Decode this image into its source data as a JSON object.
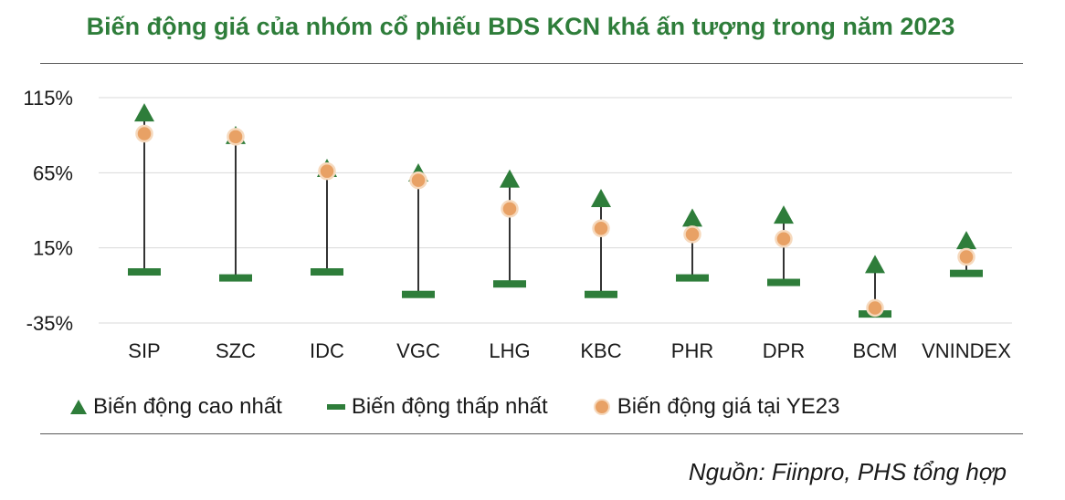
{
  "title": "Biến động giá của nhóm cổ phiếu BDS KCN khá ấn tượng trong năm 2023",
  "source": "Nguồn: Fiinpro, PHS tổng hợp",
  "colors": {
    "title": "#2e7d3a",
    "high": "#2e7d3a",
    "low": "#2e7d3a",
    "ye": "#e8a165",
    "ye_border": "#f6d9bd",
    "stem": "#333333",
    "grid": "#d9d9d9"
  },
  "legend": {
    "high": "Biến động cao nhất",
    "low": "Biến động thấp nhất",
    "ye": "Biến động giá tại YE23"
  },
  "chart_data": {
    "type": "scatter",
    "categories": [
      "SIP",
      "SZC",
      "IDC",
      "VGC",
      "LHG",
      "KBC",
      "PHR",
      "DPR",
      "BCM",
      "VNINDEX"
    ],
    "ylim": [
      -35,
      115
    ],
    "yticks": [
      -35,
      15,
      65,
      115
    ],
    "ytick_labels": [
      "-35%",
      "15%",
      "65%",
      "115%"
    ],
    "grid": true,
    "legend_position": "bottom",
    "series": [
      {
        "name": "Biến động cao nhất",
        "marker": "triangle",
        "values": [
          104,
          89,
          67,
          64,
          60,
          47,
          34,
          36,
          3,
          19
        ]
      },
      {
        "name": "Biến động thấp nhất",
        "marker": "dash",
        "values": [
          -1,
          -5,
          -1,
          -16,
          -9,
          -16,
          -5,
          -8,
          -29,
          -2
        ]
      },
      {
        "name": "Biến động giá tại YE23",
        "marker": "circle",
        "values": [
          91,
          89,
          66,
          60,
          41,
          28,
          24,
          21,
          -25,
          9
        ]
      }
    ]
  }
}
